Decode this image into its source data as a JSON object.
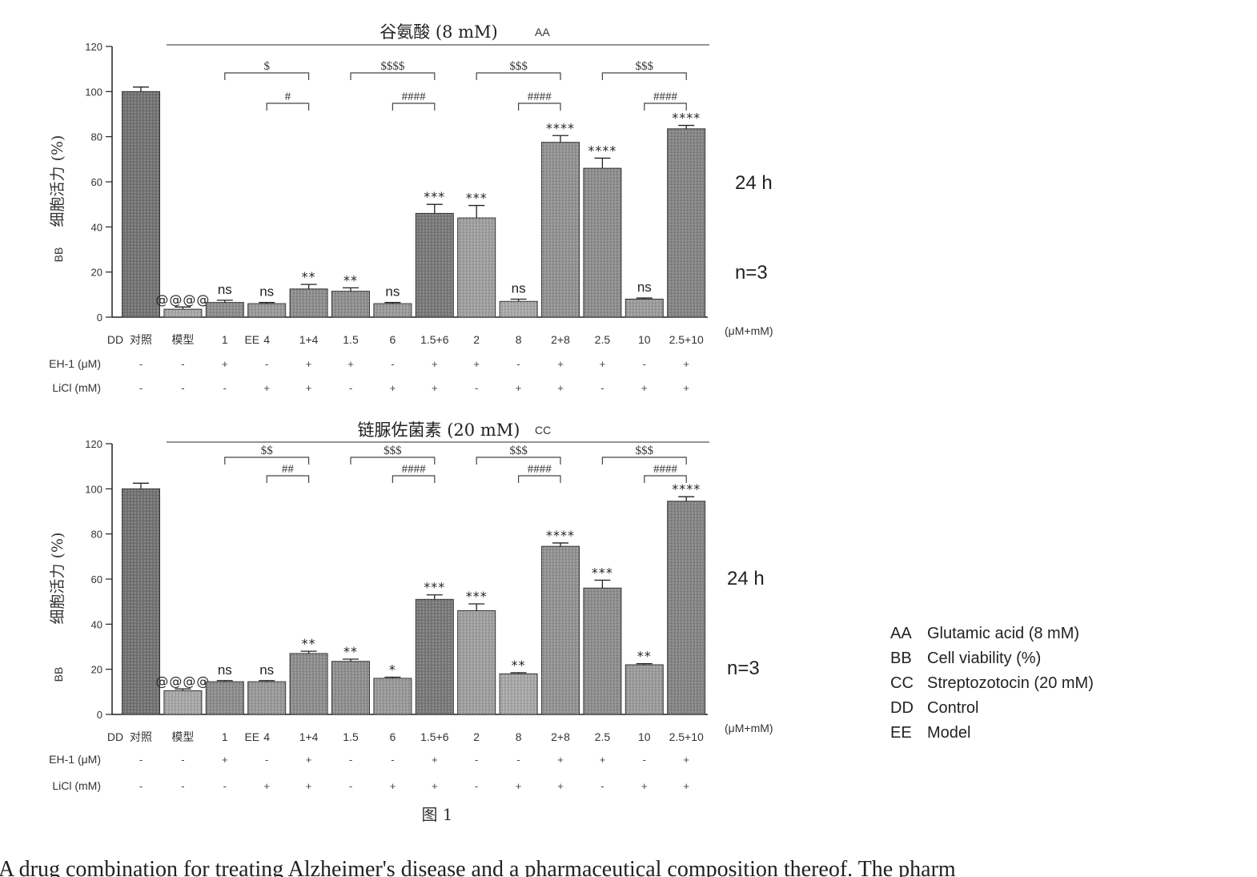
{
  "chart_data": [
    {
      "type": "bar",
      "title": "谷氨酸 (8 mM)",
      "title_tag": "AA",
      "ylabel": "细胞活力 (%)",
      "ylabel_tag": "BB",
      "ylim": [
        0,
        120
      ],
      "yticks": [
        0,
        20,
        40,
        60,
        80,
        100,
        120
      ],
      "xunit": "(μM+mM)",
      "categories": [
        "对照",
        "模型",
        "1",
        "4",
        "1+4",
        "1.5",
        "6",
        "1.5+6",
        "2",
        "8",
        "2+8",
        "2.5",
        "10",
        "2.5+10"
      ],
      "category_tags": [
        "DD",
        "",
        "EE",
        "",
        "",
        "",
        "",
        "",
        "",
        "",
        "",
        "",
        "",
        ""
      ],
      "values": [
        100,
        3.5,
        6.5,
        6,
        12.5,
        11.5,
        6,
        46,
        44,
        7,
        77.5,
        66,
        8,
        83.5
      ],
      "errors": [
        2,
        1,
        1,
        0.5,
        2,
        1.5,
        0.5,
        4,
        5.5,
        1,
        3,
        4.5,
        0.5,
        1.5
      ],
      "bar_colors": [
        "#747474",
        "#a8a8a8",
        "#8d8d8d",
        "#9a9a9a",
        "#8e8e8e",
        "#909090",
        "#9a9a9a",
        "#7a7a7a",
        "#a0a0a0",
        "#a8a8a8",
        "#939393",
        "#8e8e8e",
        "#9c9c9c",
        "#858585"
      ],
      "significance": [
        "",
        "@@@@",
        "ns",
        "ns",
        "**",
        "**",
        "ns",
        "***",
        "***",
        "ns",
        "****",
        "****",
        "ns",
        "****"
      ],
      "brackets_dollar": [
        {
          "from": 2,
          "to": 4,
          "label": "$"
        },
        {
          "from": 5,
          "to": 7,
          "label": "$$$$"
        },
        {
          "from": 8,
          "to": 10,
          "label": "$$$"
        },
        {
          "from": 11,
          "to": 13,
          "label": "$$$"
        }
      ],
      "brackets_hash": [
        {
          "from": 3,
          "to": 4,
          "label": "#"
        },
        {
          "from": 6,
          "to": 7,
          "label": "####"
        },
        {
          "from": 9,
          "to": 10,
          "label": "####"
        },
        {
          "from": 12,
          "to": 13,
          "label": "####"
        }
      ],
      "eh1": [
        "-",
        "-",
        "+",
        "-",
        "+",
        "+",
        "-",
        "+",
        "+",
        "-",
        "+",
        "+",
        "-",
        "+"
      ],
      "licl": [
        "-",
        "-",
        "-",
        "+",
        "+",
        "-",
        "+",
        "+",
        "-",
        "+",
        "+",
        "-",
        "+",
        "+"
      ],
      "time": "24 h",
      "n": "n=3"
    },
    {
      "type": "bar",
      "title": "链脲佐菌素 (20 mM)",
      "title_tag": "CC",
      "ylabel": "细胞活力 (%)",
      "ylabel_tag": "BB",
      "ylim": [
        0,
        120
      ],
      "yticks": [
        0,
        20,
        40,
        60,
        80,
        100,
        120
      ],
      "xunit": "(μM+mM)",
      "categories": [
        "对照",
        "模型",
        "1",
        "4",
        "1+4",
        "1.5",
        "6",
        "1.5+6",
        "2",
        "8",
        "2+8",
        "2.5",
        "10",
        "2.5+10"
      ],
      "category_tags": [
        "DD",
        "",
        "EE",
        "",
        "",
        "",
        "",
        "",
        "",
        "",
        "",
        "",
        "",
        ""
      ],
      "values": [
        100,
        10.5,
        14.5,
        14.5,
        27,
        23.5,
        16,
        51,
        46,
        18,
        74.5,
        56,
        22,
        94.5
      ],
      "errors": [
        2.5,
        0.8,
        0.5,
        0.5,
        1,
        1,
        0.5,
        2,
        3,
        0.5,
        1.5,
        3.5,
        0.5,
        2
      ],
      "bar_colors": [
        "#747474",
        "#a8a8a8",
        "#8d8d8d",
        "#9a9a9a",
        "#8e8e8e",
        "#909090",
        "#9a9a9a",
        "#7a7a7a",
        "#a0a0a0",
        "#a8a8a8",
        "#939393",
        "#8e8e8e",
        "#9c9c9c",
        "#858585"
      ],
      "significance": [
        "",
        "@@@@",
        "ns",
        "ns",
        "**",
        "**",
        "*",
        "***",
        "***",
        "**",
        "****",
        "***",
        "**",
        "****"
      ],
      "brackets_dollar": [
        {
          "from": 2,
          "to": 4,
          "label": "$$"
        },
        {
          "from": 5,
          "to": 7,
          "label": "$$$"
        },
        {
          "from": 8,
          "to": 10,
          "label": "$$$"
        },
        {
          "from": 11,
          "to": 13,
          "label": "$$$"
        }
      ],
      "brackets_hash": [
        {
          "from": 3,
          "to": 4,
          "label": "##"
        },
        {
          "from": 6,
          "to": 7,
          "label": "####"
        },
        {
          "from": 9,
          "to": 10,
          "label": "####"
        },
        {
          "from": 12,
          "to": 13,
          "label": "####"
        }
      ],
      "eh1": [
        "-",
        "-",
        "+",
        "-",
        "+",
        "-",
        "-",
        "+",
        "-",
        "-",
        "+",
        "+",
        "-",
        "+"
      ],
      "licl": [
        "-",
        "-",
        "-",
        "+",
        "+",
        "-",
        "+",
        "+",
        "-",
        "+",
        "+",
        "-",
        "+",
        "+"
      ],
      "time": "24 h",
      "n": "n=3"
    }
  ],
  "row_labels": {
    "eh1": "EH-1 (μM)",
    "licl": "LiCl (mM)"
  },
  "figure_label": "图 1",
  "legend": [
    {
      "key": "AA",
      "text": "Glutamic acid (8 mM)"
    },
    {
      "key": "BB",
      "text": "Cell viability (%)"
    },
    {
      "key": "CC",
      "text": "Streptozotocin (20 mM)"
    },
    {
      "key": "DD",
      "text": "Control"
    },
    {
      "key": "EE",
      "text": "Model"
    }
  ],
  "caption": "A drug combination for treating Alzheimer's disease and a pharmaceutical composition thereof. The pharm"
}
